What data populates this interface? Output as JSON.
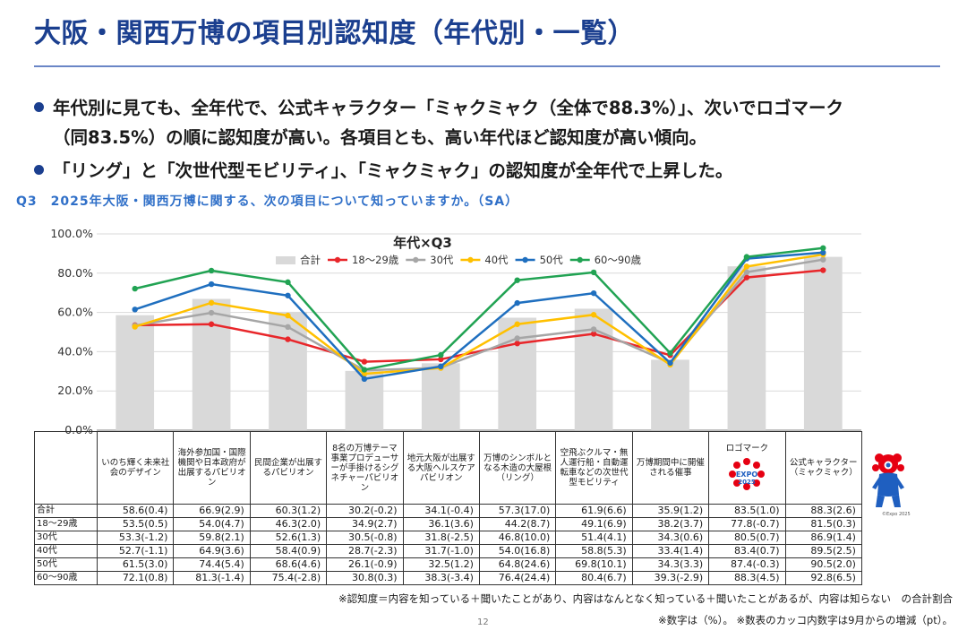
{
  "title": "大阪・関西万博の項目別認知度（年代別・一覧）",
  "bullets": [
    {
      "line1": "年代別に見ても、全年代で、公式キャラクター「ミャクミャク（全体で88.3%）」、次いでロゴマーク",
      "line2": "（同83.5%）の順に認知度が高い。各項目とも、高い年代ほど認知度が高い傾向。"
    },
    {
      "line1": "「リング」と「次世代型モビリティ」、「ミャクミャク」の認知度が全年代で上昇した。"
    }
  ],
  "question": "Q3　2025年大阪・関西万博に関する、次の項目について知っていますか。（SA）",
  "chart_data": {
    "type": "bar+line",
    "title": "年代×Q3",
    "ylim": [
      0,
      100
    ],
    "yticks": [
      "0.0%",
      "20.0%",
      "40.0%",
      "60.0%",
      "80.0%",
      "100.0%"
    ],
    "grid": true,
    "legend_position": "top",
    "categories": [
      "いのち輝く未来社会のデザイン",
      "海外参加国・国際機関や日本政府が出展するパビリオン",
      "民間企業が出展するパビリオン",
      "8名の万博テーマ事業プロデューサーが手掛けるシグネチャーパビリオン",
      "地元大阪が出展する大阪ヘルスケアパビリオン",
      "万博のシンボルとなる木造の大屋根（リング）",
      "空飛ぶクルマ・無人運行船・自動運転車などの次世代型モビリティ",
      "万博期間中に開催される催事",
      "ロゴマーク",
      "公式キャラクター（ミャクミャク）"
    ],
    "series": [
      {
        "name": "合計",
        "kind": "bar",
        "color": "#d9d9d9",
        "values": [
          58.6,
          66.9,
          60.3,
          30.2,
          34.1,
          57.3,
          61.9,
          35.9,
          83.5,
          88.3
        ],
        "changes": [
          "0.4",
          "2.9",
          "1.2",
          "-0.2",
          "-0.4",
          "17.0",
          "6.6",
          "1.2",
          "1.0",
          "2.6"
        ]
      },
      {
        "name": "18～29歳",
        "kind": "line",
        "color": "#e8262a",
        "values": [
          53.5,
          54.0,
          46.3,
          34.9,
          36.1,
          44.2,
          49.1,
          38.2,
          77.8,
          81.5
        ],
        "changes": [
          "0.5",
          "4.7",
          "2.0",
          "2.7",
          "3.6",
          "8.7",
          "6.9",
          "3.7",
          "-0.7",
          "0.3"
        ]
      },
      {
        "name": "30代",
        "kind": "line",
        "color": "#a6a6a6",
        "values": [
          53.3,
          59.8,
          52.6,
          30.5,
          31.8,
          46.8,
          51.4,
          34.3,
          80.5,
          86.9
        ],
        "changes": [
          "-1.2",
          "2.1",
          "1.3",
          "-0.8",
          "-2.5",
          "10.0",
          "4.1",
          "0.6",
          "0.7",
          "1.4"
        ]
      },
      {
        "name": "40代",
        "kind": "line",
        "color": "#ffc000",
        "values": [
          52.7,
          64.9,
          58.4,
          28.7,
          31.7,
          54.0,
          58.8,
          33.4,
          83.4,
          89.5
        ],
        "changes": [
          "-1.1",
          "3.6",
          "0.9",
          "-2.3",
          "-1.0",
          "16.8",
          "5.3",
          "1.4",
          "0.7",
          "2.5"
        ]
      },
      {
        "name": "50代",
        "kind": "line",
        "color": "#1f6fbf",
        "values": [
          61.5,
          74.4,
          68.6,
          26.1,
          32.5,
          64.8,
          69.8,
          34.3,
          87.4,
          90.5
        ],
        "changes": [
          "3.0",
          "5.4",
          "4.6",
          "-0.9",
          "1.2",
          "24.6",
          "10.1",
          "3.3",
          "-0.3",
          "2.0"
        ]
      },
      {
        "name": "60～90歳",
        "kind": "line",
        "color": "#21a353",
        "values": [
          72.1,
          81.3,
          75.4,
          30.8,
          38.3,
          76.4,
          80.4,
          39.3,
          88.3,
          92.8
        ],
        "changes": [
          "0.8",
          "-1.4",
          "-2.8",
          "0.3",
          "-3.4",
          "24.4",
          "6.7",
          "-2.9",
          "4.5",
          "6.5"
        ]
      }
    ]
  },
  "table": {
    "headers": [
      "いのち輝く未来社会のデザイン",
      "海外参加国・国際機関や日本政府が出展するパビリオン",
      "民間企業が出展するパビリオン",
      "8名の万博テーマ事業プロデューサーが手掛けるシグネチャーパビリオン",
      "地元大阪が出展する大阪ヘルスケアパビリオン",
      "万博のシンボルとなる木造の大屋根（リング）",
      "空飛ぶクルマ・無人運行船・自動運転車などの次世代型モビリティ",
      "万博期間中に開催される催事",
      "ロゴマーク",
      "公式キャラクター（ミャクミャク）"
    ],
    "logo_text": "EXPO 2025",
    "rows": [
      {
        "label": "合計",
        "cells": [
          "58.6(0.4)",
          "66.9(2.9)",
          "60.3(1.2)",
          "30.2(-0.2)",
          "34.1(-0.4)",
          "57.3(17.0)",
          "61.9(6.6)",
          "35.9(1.2)",
          "83.5(1.0)",
          "88.3(2.6)"
        ]
      },
      {
        "label": "18～29歳",
        "cells": [
          "53.5(0.5)",
          "54.0(4.7)",
          "46.3(2.0)",
          "34.9(2.7)",
          "36.1(3.6)",
          "44.2(8.7)",
          "49.1(6.9)",
          "38.2(3.7)",
          "77.8(-0.7)",
          "81.5(0.3)"
        ]
      },
      {
        "label": "30代",
        "cells": [
          "53.3(-1.2)",
          "59.8(2.1)",
          "52.6(1.3)",
          "30.5(-0.8)",
          "31.8(-2.5)",
          "46.8(10.0)",
          "51.4(4.1)",
          "34.3(0.6)",
          "80.5(0.7)",
          "86.9(1.4)"
        ]
      },
      {
        "label": "40代",
        "cells": [
          "52.7(-1.1)",
          "64.9(3.6)",
          "58.4(0.9)",
          "28.7(-2.3)",
          "31.7(-1.0)",
          "54.0(16.8)",
          "58.8(5.3)",
          "33.4(1.4)",
          "83.4(0.7)",
          "89.5(2.5)"
        ]
      },
      {
        "label": "50代",
        "cells": [
          "61.5(3.0)",
          "74.4(5.4)",
          "68.6(4.6)",
          "26.1(-0.9)",
          "32.5(1.2)",
          "64.8(24.6)",
          "69.8(10.1)",
          "34.3(3.3)",
          "87.4(-0.3)",
          "90.5(2.0)"
        ]
      },
      {
        "label": "60～90歳",
        "cells": [
          "72.1(0.8)",
          "81.3(-1.4)",
          "75.4(-2.8)",
          "30.8(0.3)",
          "38.3(-3.4)",
          "76.4(24.4)",
          "80.4(6.7)",
          "39.3(-2.9)",
          "88.3(4.5)",
          "92.8(6.5)"
        ]
      }
    ]
  },
  "notes": {
    "line1": "※認知度＝内容を知っている＋聞いたことがあり、内容はなんとなく知っている＋聞いたことがあるが、内容は知らない　の合計割合",
    "line2": "※数字は（%）。 ※数表のカッコ内数字は9月からの増減（pt）。",
    "page": "12",
    "mascot_credit": "©Expo 2025"
  },
  "colors": {
    "title": "#1b3f8f",
    "question": "#2f6fc8",
    "bar": "#d9d9d9"
  }
}
